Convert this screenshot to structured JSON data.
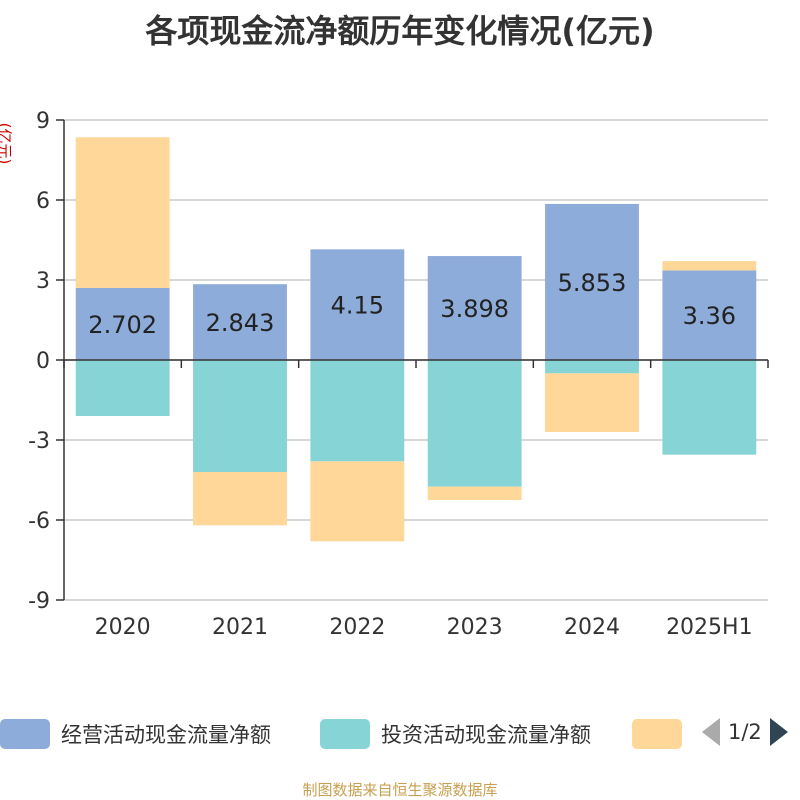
{
  "chart_data": {
    "type": "bar",
    "stacked": true,
    "title": "各项现金流净额历年变化情况(亿元)",
    "ylabel": "(亿元)",
    "categories": [
      "2020",
      "2021",
      "2022",
      "2023",
      "2024",
      "2025H1"
    ],
    "ylim": [
      -9,
      9
    ],
    "yticks": [
      9,
      6,
      3,
      0,
      -3,
      -6,
      -9
    ],
    "grid": true,
    "series": [
      {
        "name": "经营活动现金流量净额",
        "color": "#8eacd9",
        "values": [
          2.702,
          2.843,
          4.15,
          3.898,
          5.853,
          3.36
        ],
        "labels": [
          "2.702",
          "2.843",
          "4.15",
          "3.898",
          "5.853",
          "3.36"
        ]
      },
      {
        "name": "投资活动现金流量净额",
        "color": "#87d4d6",
        "values": [
          -2.1,
          -4.2,
          -3.8,
          -4.75,
          -0.5,
          -3.55
        ]
      },
      {
        "name": "",
        "color": "#fed799",
        "values": [
          5.65,
          -2.0,
          -3.0,
          -0.5,
          -2.2,
          0.35
        ]
      }
    ],
    "legend": {
      "position": "bottom",
      "page": "1/2"
    }
  },
  "source": "制图数据来自恒生聚源数据库"
}
